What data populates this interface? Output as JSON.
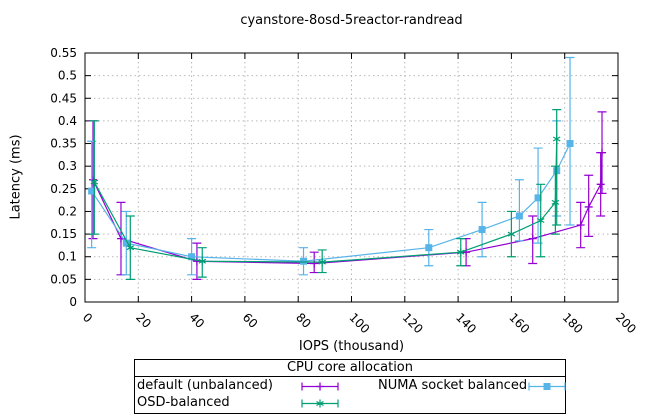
{
  "legend": {
    "title": "CPU core allocation"
  },
  "chart_data": {
    "type": "line",
    "title": "cyanstore-8osd-5reactor-randread",
    "xlabel": "IOPS (thousand)",
    "ylabel": "Latency (ms)",
    "xlim": [
      0,
      200
    ],
    "ylim": [
      0,
      0.55
    ],
    "grid": true,
    "legend_position": "below plot, boxed, title row",
    "xticks": {
      "values": [
        0,
        20,
        40,
        60,
        80,
        100,
        120,
        140,
        160,
        180,
        200
      ],
      "labels": [
        "0",
        "20",
        "40",
        "60",
        "80",
        "100",
        "120",
        "140",
        "160",
        "180",
        "200"
      ],
      "rotation": 45
    },
    "yticks": {
      "values": [
        0,
        0.05,
        0.1,
        0.15,
        0.2,
        0.25,
        0.3,
        0.35,
        0.4,
        0.45,
        0.5,
        0.55
      ],
      "labels": [
        "0",
        "0.05",
        "0.1",
        "0.15",
        "0.2",
        "0.25",
        "0.3",
        "0.35",
        "0.4",
        "0.45",
        "0.5",
        "0.55"
      ]
    },
    "series": [
      {
        "name": "default (unbalanced)",
        "color": "#9400d3",
        "marker": "plus",
        "points": [
          {
            "x": 3,
            "y": 0.27,
            "ylow": 0.14,
            "yhigh": 0.4
          },
          {
            "x": 13.5,
            "y": 0.14,
            "ylow": 0.06,
            "yhigh": 0.22
          },
          {
            "x": 42,
            "y": 0.09,
            "ylow": 0.05,
            "yhigh": 0.13
          },
          {
            "x": 86,
            "y": 0.085,
            "ylow": 0.065,
            "yhigh": 0.11
          },
          {
            "x": 143,
            "y": 0.11,
            "ylow": 0.08,
            "yhigh": 0.14
          },
          {
            "x": 168,
            "y": 0.14,
            "ylow": 0.085,
            "yhigh": 0.19
          },
          {
            "x": 186,
            "y": 0.17,
            "ylow": 0.12,
            "yhigh": 0.22
          },
          {
            "x": 189,
            "y": 0.21,
            "ylow": 0.145,
            "yhigh": 0.28
          },
          {
            "x": 193.5,
            "y": 0.26,
            "ylow": 0.19,
            "yhigh": 0.33
          },
          {
            "x": 194,
            "y": 0.33,
            "ylow": 0.24,
            "yhigh": 0.42
          }
        ]
      },
      {
        "name": "NUMA socket balanced",
        "color": "#56b4e9",
        "marker": "square",
        "points": [
          {
            "x": 2.5,
            "y": 0.245,
            "ylow": 0.12,
            "yhigh": 0.355
          },
          {
            "x": 15.5,
            "y": 0.13,
            "ylow": 0.06,
            "yhigh": 0.2
          },
          {
            "x": 40,
            "y": 0.1,
            "ylow": 0.06,
            "yhigh": 0.14
          },
          {
            "x": 82,
            "y": 0.09,
            "ylow": 0.06,
            "yhigh": 0.12
          },
          {
            "x": 129,
            "y": 0.12,
            "ylow": 0.08,
            "yhigh": 0.16
          },
          {
            "x": 149,
            "y": 0.16,
            "ylow": 0.1,
            "yhigh": 0.22
          },
          {
            "x": 163,
            "y": 0.19,
            "ylow": 0.135,
            "yhigh": 0.27
          },
          {
            "x": 170,
            "y": 0.23,
            "ylow": 0.13,
            "yhigh": 0.34
          },
          {
            "x": 177,
            "y": 0.29,
            "ylow": 0.19,
            "yhigh": 0.4
          },
          {
            "x": 182,
            "y": 0.35,
            "ylow": 0.17,
            "yhigh": 0.54
          }
        ]
      },
      {
        "name": "OSD-balanced",
        "color": "#009e73",
        "marker": "asterisk",
        "points": [
          {
            "x": 3.5,
            "y": 0.265,
            "ylow": 0.15,
            "yhigh": 0.4
          },
          {
            "x": 17,
            "y": 0.12,
            "ylow": 0.05,
            "yhigh": 0.19
          },
          {
            "x": 44,
            "y": 0.09,
            "ylow": 0.055,
            "yhigh": 0.12
          },
          {
            "x": 89,
            "y": 0.088,
            "ylow": 0.065,
            "yhigh": 0.115
          },
          {
            "x": 141,
            "y": 0.11,
            "ylow": 0.08,
            "yhigh": 0.14
          },
          {
            "x": 160,
            "y": 0.15,
            "ylow": 0.1,
            "yhigh": 0.2
          },
          {
            "x": 171,
            "y": 0.18,
            "ylow": 0.1,
            "yhigh": 0.26
          },
          {
            "x": 176.5,
            "y": 0.22,
            "ylow": 0.15,
            "yhigh": 0.3
          },
          {
            "x": 177,
            "y": 0.36,
            "ylow": 0.17,
            "yhigh": 0.425
          }
        ]
      }
    ]
  }
}
